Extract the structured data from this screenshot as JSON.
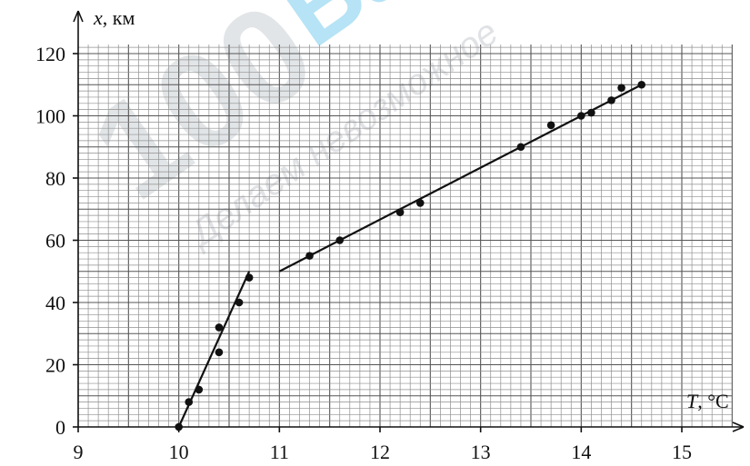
{
  "chart_data": {
    "type": "scatter",
    "title": "",
    "xlabel": {
      "var": "T",
      "unit": ", °C"
    },
    "ylabel": {
      "var": "x",
      "unit": ", км"
    },
    "xlim": [
      9,
      15.5
    ],
    "ylim": [
      0,
      123
    ],
    "x_ticks": [
      "9",
      "10",
      "11",
      "12",
      "13",
      "14",
      "15"
    ],
    "y_ticks": [
      "0",
      "20",
      "40",
      "60",
      "80",
      "100",
      "120"
    ],
    "grid": true,
    "legend": "none",
    "series": [
      {
        "points": [
          [
            10.0,
            0
          ],
          [
            10.1,
            8
          ],
          [
            10.2,
            12
          ],
          [
            10.4,
            24
          ],
          [
            10.4,
            32
          ],
          [
            10.6,
            40
          ],
          [
            10.7,
            48
          ],
          [
            11.3,
            55
          ],
          [
            11.6,
            60
          ],
          [
            12.2,
            69
          ],
          [
            12.4,
            72
          ],
          [
            13.4,
            90
          ],
          [
            13.7,
            97
          ],
          [
            14.0,
            100
          ],
          [
            14.1,
            101
          ],
          [
            14.3,
            105
          ],
          [
            14.4,
            109
          ],
          [
            14.6,
            110
          ]
        ]
      }
    ],
    "fit_lines": [
      {
        "x": [
          10.0,
          10.7
        ],
        "y": [
          0,
          50
        ]
      },
      {
        "x": [
          11.0,
          14.6
        ],
        "y": [
          50,
          110
        ]
      }
    ]
  },
  "watermark": {
    "main": "100",
    "accent": "Ба",
    "sub": "Делаем невозможное"
  }
}
